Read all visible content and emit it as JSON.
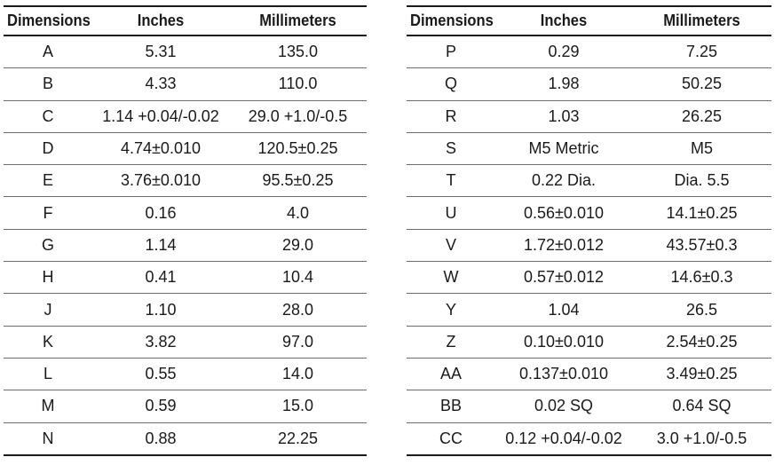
{
  "headers": {
    "dimensions": "Dimensions",
    "inches": "Inches",
    "millimeters": "Millimeters"
  },
  "left_table": [
    {
      "dim": "A",
      "inches": "5.31",
      "mm": "135.0"
    },
    {
      "dim": "B",
      "inches": "4.33",
      "mm": "110.0"
    },
    {
      "dim": "C",
      "inches": "1.14 +0.04/-0.02",
      "mm": "29.0 +1.0/-0.5"
    },
    {
      "dim": "D",
      "inches": "4.74±0.010",
      "mm": "120.5±0.25"
    },
    {
      "dim": "E",
      "inches": "3.76±0.010",
      "mm": "95.5±0.25"
    },
    {
      "dim": "F",
      "inches": "0.16",
      "mm": "4.0"
    },
    {
      "dim": "G",
      "inches": "1.14",
      "mm": "29.0"
    },
    {
      "dim": "H",
      "inches": "0.41",
      "mm": "10.4"
    },
    {
      "dim": "J",
      "inches": "1.10",
      "mm": "28.0"
    },
    {
      "dim": "K",
      "inches": "3.82",
      "mm": "97.0"
    },
    {
      "dim": "L",
      "inches": "0.55",
      "mm": "14.0"
    },
    {
      "dim": "M",
      "inches": "0.59",
      "mm": "15.0"
    },
    {
      "dim": "N",
      "inches": "0.88",
      "mm": "22.25"
    }
  ],
  "right_table": [
    {
      "dim": "P",
      "inches": "0.29",
      "mm": "7.25"
    },
    {
      "dim": "Q",
      "inches": "1.98",
      "mm": "50.25"
    },
    {
      "dim": "R",
      "inches": "1.03",
      "mm": "26.25"
    },
    {
      "dim": "S",
      "inches": "M5 Metric",
      "mm": "M5"
    },
    {
      "dim": "T",
      "inches": "0.22 Dia.",
      "mm": "Dia. 5.5"
    },
    {
      "dim": "U",
      "inches": "0.56±0.010",
      "mm": "14.1±0.25"
    },
    {
      "dim": "V",
      "inches": "1.72±0.012",
      "mm": "43.57±0.3"
    },
    {
      "dim": "W",
      "inches": "0.57±0.012",
      "mm": "14.6±0.3"
    },
    {
      "dim": "Y",
      "inches": "1.04",
      "mm": "26.5"
    },
    {
      "dim": "Z",
      "inches": "0.10±0.010",
      "mm": "2.54±0.25"
    },
    {
      "dim": "AA",
      "inches": "0.137±0.010",
      "mm": "3.49±0.25"
    },
    {
      "dim": "BB",
      "inches": "0.02 SQ",
      "mm": "0.64 SQ"
    },
    {
      "dim": "CC",
      "inches": "0.12 +0.04/-0.02",
      "mm": "3.0 +1.0/-0.5"
    }
  ]
}
